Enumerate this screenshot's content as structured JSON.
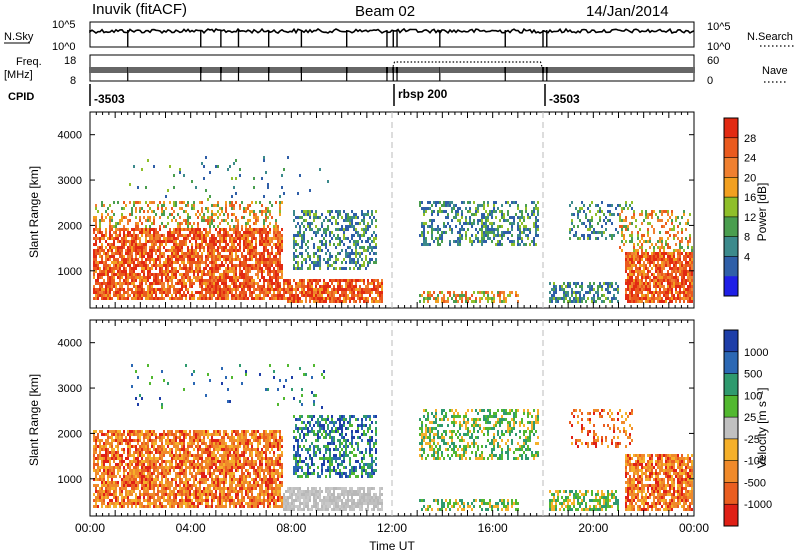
{
  "header": {
    "station": "Inuvik (fitACF)",
    "beam": "Beam 02",
    "date": "14/Jan/2014"
  },
  "top_panels": {
    "nsky_label": "N.Sky",
    "nsky_ticks": [
      "10^5",
      "10^0"
    ],
    "nsearch_label": "N.Search",
    "nsearch_ticks": [
      "10^5",
      "10^0"
    ],
    "freq_label_1": "Freq.",
    "freq_label_2": "[MHz]",
    "freq_ticks": [
      "18",
      "8"
    ],
    "nave_label": "Nave",
    "nave_ticks": [
      "60",
      "0"
    ],
    "cpid_label": "CPID",
    "cpid_values": [
      "-3503",
      "rbsp 200",
      "-3503"
    ]
  },
  "chart_data": [
    {
      "type": "heatmap",
      "title": "",
      "ylabel": "Slant Range [km]",
      "xlabel": "",
      "x_range_hours": [
        0,
        24
      ],
      "ylim": [
        180,
        4500
      ],
      "yticks": [
        "1000",
        "2000",
        "3000",
        "4000"
      ],
      "colorbar": {
        "label": "Power [dB]",
        "ticks": [
          "4",
          "8",
          "12",
          "16",
          "20",
          "24",
          "28"
        ],
        "colors": [
          "#1f1fe6",
          "#2f5fa8",
          "#3c8a8c",
          "#4a9e4f",
          "#8fbf2a",
          "#f2a020",
          "#f08030",
          "#ea5a1e",
          "#e22a12"
        ]
      }
    },
    {
      "type": "heatmap",
      "title": "",
      "ylabel": "Slant Range [km]",
      "xlabel": "Time UT",
      "x_range_hours": [
        0,
        24
      ],
      "ylim": [
        180,
        4500
      ],
      "yticks": [
        "1000",
        "2000",
        "3000",
        "4000"
      ],
      "xticks": [
        "00:00",
        "04:00",
        "08:00",
        "12:00",
        "16:00",
        "20:00",
        "00:00"
      ],
      "colorbar": {
        "label": "Velocity [m s⁻¹]",
        "ticks": [
          "1000",
          "500",
          "100",
          "25",
          "-25",
          "-100",
          "-500",
          "-1000"
        ],
        "colors": [
          "#1e3ea8",
          "#2c68b4",
          "#2f9a6e",
          "#52b830",
          "#c0c0c0",
          "#f5b02a",
          "#f08a2a",
          "#ea5e20",
          "#e02016"
        ]
      }
    }
  ]
}
